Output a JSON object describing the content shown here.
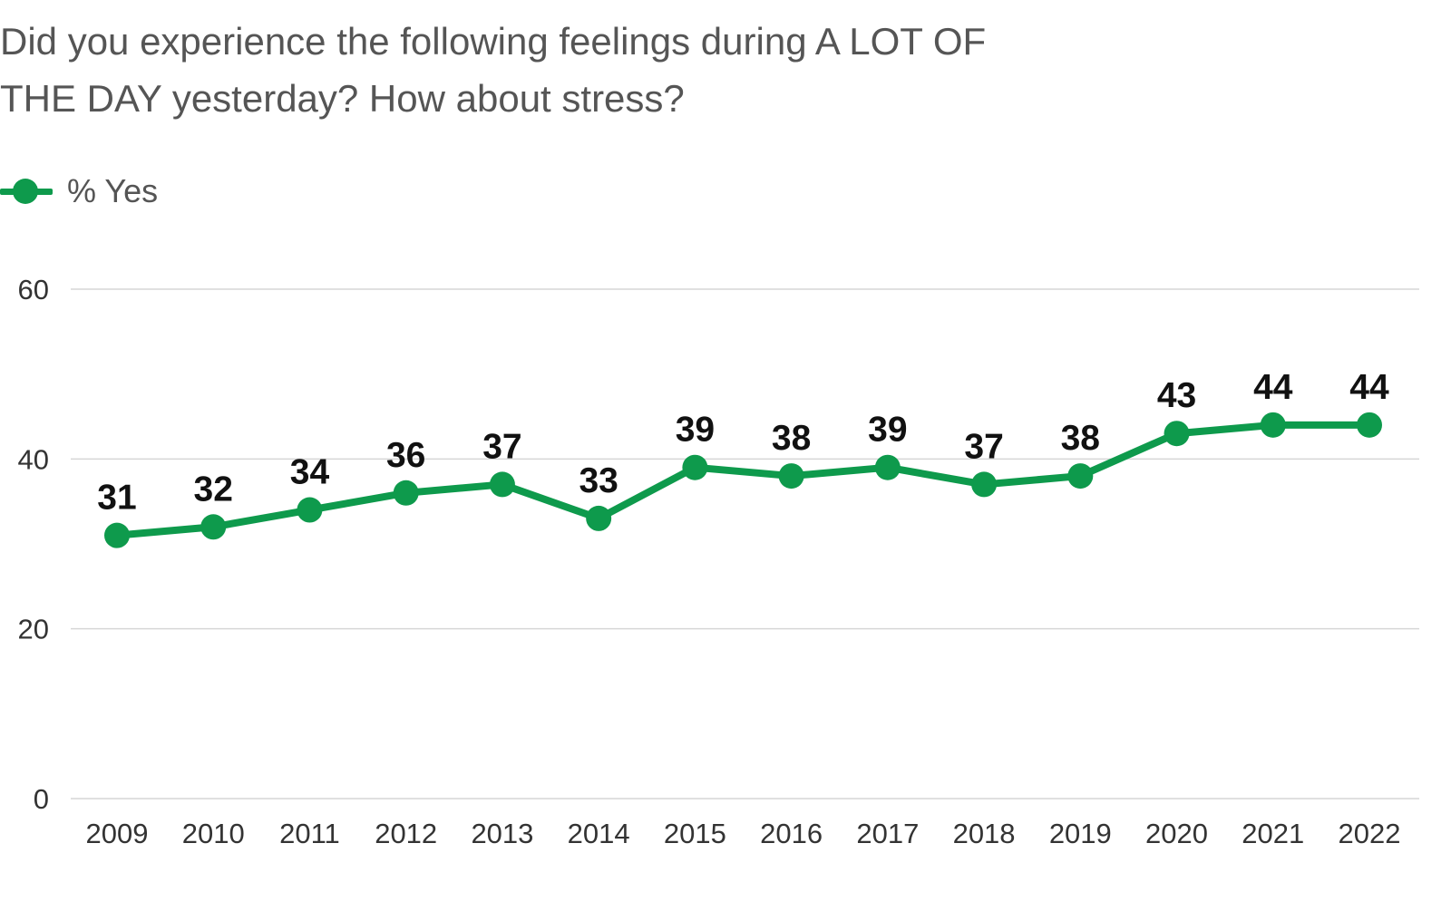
{
  "title": "Did you experience the following feelings during A LOT OF THE DAY yesterday? How about stress?",
  "legend": {
    "label": "% Yes"
  },
  "colors": {
    "series": "#0e9a4c",
    "grid": "#d6d6d6",
    "tick_text": "#333333",
    "label_text": "#111111",
    "title_text": "#555555"
  },
  "chart_data": {
    "type": "line",
    "title": "Did you experience the following feelings during A LOT OF THE DAY yesterday? How about stress?",
    "xlabel": "",
    "ylabel": "",
    "x": [
      "2009",
      "2010",
      "2011",
      "2012",
      "2013",
      "2014",
      "2015",
      "2016",
      "2017",
      "2018",
      "2019",
      "2020",
      "2021",
      "2022"
    ],
    "series": [
      {
        "name": "% Yes",
        "values": [
          31,
          32,
          34,
          36,
          37,
          33,
          39,
          38,
          39,
          37,
          38,
          43,
          44,
          44
        ]
      }
    ],
    "ylim": [
      0,
      60
    ],
    "yticks": [
      "0",
      "20",
      "40",
      "60"
    ],
    "grid": true,
    "legend_position": "top-left",
    "data_labels": true
  }
}
